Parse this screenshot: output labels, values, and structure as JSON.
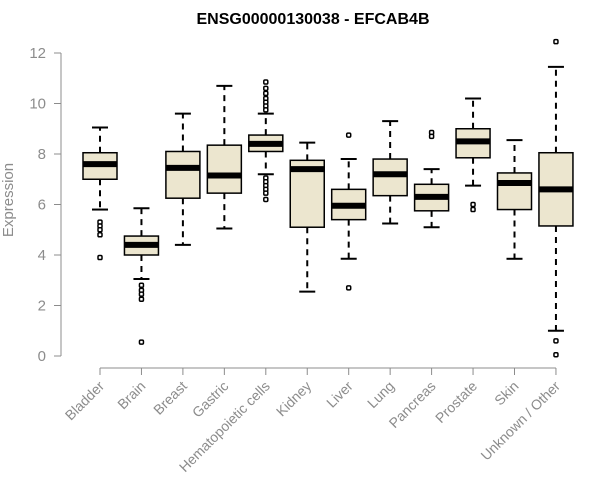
{
  "chart_data": {
    "type": "boxplot",
    "title": "ENSG00000130038 - EFCAB4B",
    "xlabel": "",
    "ylabel": "Expression",
    "ylim": [
      0,
      12
    ],
    "yticks": [
      0,
      2,
      4,
      6,
      8,
      10,
      12
    ],
    "grid": false,
    "box_color": "#ece6cf",
    "line_color": "#000000",
    "axis_color": "#8c8c8c",
    "categories": [
      "Bladder",
      "Brain",
      "Breast",
      "Gastric",
      "Hematopoietic cells",
      "Kidney",
      "Liver",
      "Lung",
      "Pancreas",
      "Prostate",
      "Skin",
      "Unknown / Other"
    ],
    "boxes": [
      {
        "name": "Bladder",
        "whisker_low": 5.8,
        "q1": 7.0,
        "median": 7.6,
        "q3": 8.05,
        "whisker_high": 9.05,
        "outliers": [
          5.3,
          5.15,
          5.0,
          4.8,
          3.9
        ]
      },
      {
        "name": "Brain",
        "whisker_low": 3.05,
        "q1": 4.0,
        "median": 4.4,
        "q3": 4.75,
        "whisker_high": 5.85,
        "outliers": [
          2.8,
          2.6,
          2.45,
          2.25,
          0.55
        ]
      },
      {
        "name": "Breast",
        "whisker_low": 4.4,
        "q1": 6.25,
        "median": 7.45,
        "q3": 8.1,
        "whisker_high": 9.6,
        "outliers": []
      },
      {
        "name": "Gastric",
        "whisker_low": 5.05,
        "q1": 6.45,
        "median": 7.15,
        "q3": 8.35,
        "whisker_high": 10.7,
        "outliers": []
      },
      {
        "name": "Hematopoietic cells",
        "whisker_low": 7.2,
        "q1": 8.1,
        "median": 8.4,
        "q3": 8.75,
        "whisker_high": 9.6,
        "outliers": [
          10.85,
          10.6,
          10.4,
          10.2,
          10.05,
          9.9,
          9.75,
          7.05,
          6.9,
          6.75,
          6.6,
          6.45,
          6.2
        ]
      },
      {
        "name": "Kidney",
        "whisker_low": 2.55,
        "q1": 5.1,
        "median": 7.4,
        "q3": 7.75,
        "whisker_high": 8.45,
        "outliers": []
      },
      {
        "name": "Liver",
        "whisker_low": 3.85,
        "q1": 5.4,
        "median": 5.95,
        "q3": 6.6,
        "whisker_high": 7.8,
        "outliers": [
          8.75,
          2.7
        ]
      },
      {
        "name": "Lung",
        "whisker_low": 5.25,
        "q1": 6.35,
        "median": 7.2,
        "q3": 7.8,
        "whisker_high": 9.3,
        "outliers": []
      },
      {
        "name": "Pancreas",
        "whisker_low": 5.1,
        "q1": 5.75,
        "median": 6.3,
        "q3": 6.8,
        "whisker_high": 7.4,
        "outliers": [
          8.85,
          8.7
        ]
      },
      {
        "name": "Prostate",
        "whisker_low": 6.75,
        "q1": 7.85,
        "median": 8.5,
        "q3": 9.0,
        "whisker_high": 10.2,
        "outliers": [
          6.0,
          5.8
        ]
      },
      {
        "name": "Skin",
        "whisker_low": 3.85,
        "q1": 5.8,
        "median": 6.85,
        "q3": 7.25,
        "whisker_high": 8.55,
        "outliers": []
      },
      {
        "name": "Unknown / Other",
        "whisker_low": 1.0,
        "q1": 5.15,
        "median": 6.6,
        "q3": 8.05,
        "whisker_high": 11.45,
        "outliers": [
          12.45,
          0.6,
          0.05
        ]
      }
    ]
  }
}
